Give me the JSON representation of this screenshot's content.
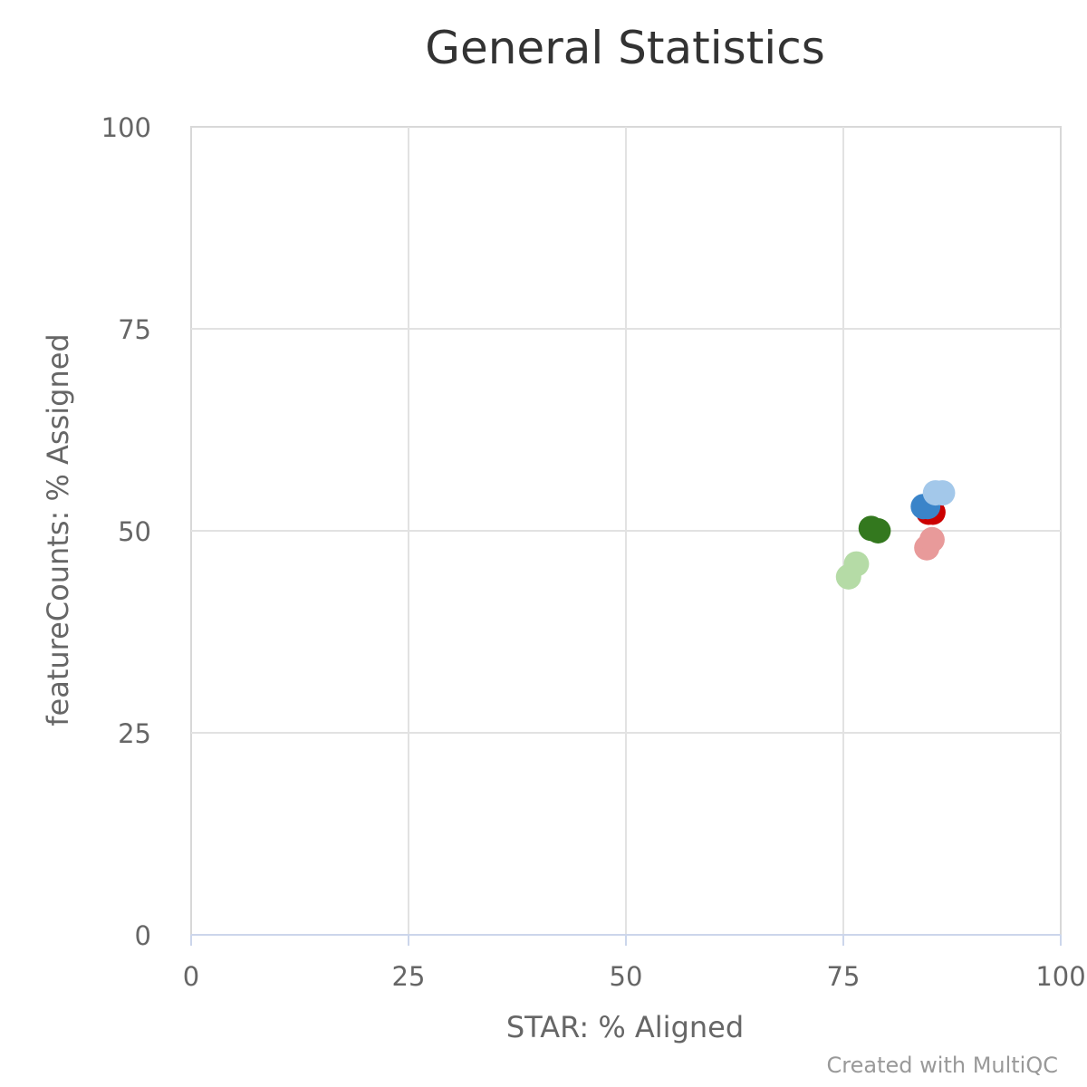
{
  "chart_data": {
    "type": "scatter",
    "title": "General Statistics",
    "xlabel": "STAR: % Aligned",
    "ylabel": "featureCounts: % Assigned",
    "xlim": [
      0,
      100
    ],
    "ylim": [
      0,
      100
    ],
    "xticks": [
      "0",
      "25",
      "50",
      "75",
      "100"
    ],
    "yticks": [
      "0",
      "25",
      "50",
      "75",
      "100"
    ],
    "grid": true,
    "credit": "Created with MultiQC",
    "points": [
      {
        "x": 75.6,
        "y": 44.3,
        "color": "#b5dba6"
      },
      {
        "x": 76.5,
        "y": 45.9,
        "color": "#b5dba6"
      },
      {
        "x": 78.2,
        "y": 50.3,
        "color": "#33781e"
      },
      {
        "x": 79.0,
        "y": 50.0,
        "color": "#33781e"
      },
      {
        "x": 84.8,
        "y": 52.3,
        "color": "#cc0000"
      },
      {
        "x": 85.3,
        "y": 52.3,
        "color": "#cc0000"
      },
      {
        "x": 84.2,
        "y": 53.0,
        "color": "#3a84c9"
      },
      {
        "x": 84.7,
        "y": 53.0,
        "color": "#3a84c9"
      },
      {
        "x": 84.6,
        "y": 47.9,
        "color": "#e89a9a"
      },
      {
        "x": 85.2,
        "y": 48.9,
        "color": "#e89a9a"
      },
      {
        "x": 85.6,
        "y": 54.7,
        "color": "#a3c8ea"
      },
      {
        "x": 86.4,
        "y": 54.7,
        "color": "#a3c8ea"
      }
    ]
  }
}
